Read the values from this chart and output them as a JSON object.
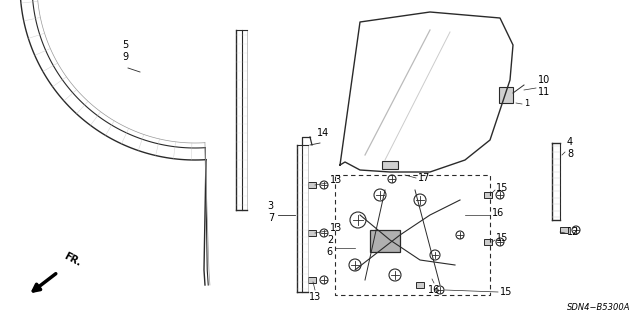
{
  "bg_color": "#ffffff",
  "fig_width": 6.4,
  "fig_height": 3.19,
  "dpi": 100,
  "color_main": "#2a2a2a",
  "color_light": "#888888",
  "color_hatch": "#999999"
}
